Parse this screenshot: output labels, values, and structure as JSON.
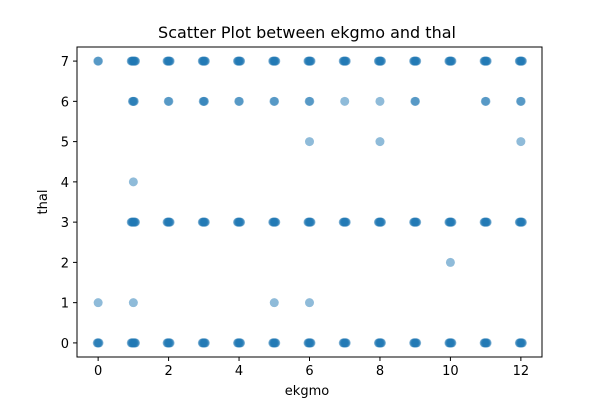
{
  "chart_data": {
    "type": "scatter",
    "title": "Scatter Plot between ekgmo and thal",
    "xlabel": "ekgmo",
    "ylabel": "thal",
    "xlim": [
      -0.6,
      12.6
    ],
    "ylim": [
      -0.35,
      7.35
    ],
    "xticks": [
      0,
      2,
      4,
      6,
      8,
      10,
      12
    ],
    "yticks": [
      0,
      1,
      2,
      3,
      4,
      5,
      6,
      7
    ],
    "grid": false,
    "legend": "none",
    "marker_color": "#1f77b4",
    "marker_alpha": 0.5,
    "series": [
      {
        "points": [
          {
            "x": 0,
            "y": 0,
            "n": 4
          },
          {
            "x": 0,
            "y": 1,
            "n": 1
          },
          {
            "x": 0,
            "y": 7,
            "n": 2
          },
          {
            "x": 1,
            "y": 0,
            "n": 8
          },
          {
            "x": 1,
            "y": 1,
            "n": 1
          },
          {
            "x": 1,
            "y": 3,
            "n": 8
          },
          {
            "x": 1,
            "y": 4,
            "n": 1
          },
          {
            "x": 1,
            "y": 6,
            "n": 4
          },
          {
            "x": 1,
            "y": 7,
            "n": 8
          },
          {
            "x": 2,
            "y": 0,
            "n": 6
          },
          {
            "x": 2,
            "y": 3,
            "n": 6
          },
          {
            "x": 2,
            "y": 6,
            "n": 2
          },
          {
            "x": 2,
            "y": 7,
            "n": 6
          },
          {
            "x": 3,
            "y": 0,
            "n": 6
          },
          {
            "x": 3,
            "y": 3,
            "n": 6
          },
          {
            "x": 3,
            "y": 6,
            "n": 3
          },
          {
            "x": 3,
            "y": 7,
            "n": 6
          },
          {
            "x": 4,
            "y": 0,
            "n": 6
          },
          {
            "x": 4,
            "y": 3,
            "n": 6
          },
          {
            "x": 4,
            "y": 6,
            "n": 2
          },
          {
            "x": 4,
            "y": 7,
            "n": 6
          },
          {
            "x": 5,
            "y": 0,
            "n": 6
          },
          {
            "x": 5,
            "y": 1,
            "n": 1
          },
          {
            "x": 5,
            "y": 3,
            "n": 6
          },
          {
            "x": 5,
            "y": 6,
            "n": 2
          },
          {
            "x": 5,
            "y": 7,
            "n": 6
          },
          {
            "x": 6,
            "y": 0,
            "n": 6
          },
          {
            "x": 6,
            "y": 1,
            "n": 1
          },
          {
            "x": 6,
            "y": 3,
            "n": 6
          },
          {
            "x": 6,
            "y": 5,
            "n": 1
          },
          {
            "x": 6,
            "y": 6,
            "n": 2
          },
          {
            "x": 6,
            "y": 7,
            "n": 6
          },
          {
            "x": 7,
            "y": 0,
            "n": 6
          },
          {
            "x": 7,
            "y": 3,
            "n": 6
          },
          {
            "x": 7,
            "y": 6,
            "n": 1
          },
          {
            "x": 7,
            "y": 7,
            "n": 6
          },
          {
            "x": 8,
            "y": 0,
            "n": 6
          },
          {
            "x": 8,
            "y": 3,
            "n": 6
          },
          {
            "x": 8,
            "y": 5,
            "n": 1
          },
          {
            "x": 8,
            "y": 6,
            "n": 1
          },
          {
            "x": 8,
            "y": 7,
            "n": 6
          },
          {
            "x": 9,
            "y": 0,
            "n": 6
          },
          {
            "x": 9,
            "y": 3,
            "n": 6
          },
          {
            "x": 9,
            "y": 6,
            "n": 2
          },
          {
            "x": 9,
            "y": 7,
            "n": 6
          },
          {
            "x": 10,
            "y": 0,
            "n": 6
          },
          {
            "x": 10,
            "y": 2,
            "n": 1
          },
          {
            "x": 10,
            "y": 3,
            "n": 6
          },
          {
            "x": 10,
            "y": 7,
            "n": 6
          },
          {
            "x": 11,
            "y": 0,
            "n": 6
          },
          {
            "x": 11,
            "y": 3,
            "n": 6
          },
          {
            "x": 11,
            "y": 6,
            "n": 2
          },
          {
            "x": 11,
            "y": 7,
            "n": 6
          },
          {
            "x": 12,
            "y": 0,
            "n": 6
          },
          {
            "x": 12,
            "y": 3,
            "n": 6
          },
          {
            "x": 12,
            "y": 5,
            "n": 1
          },
          {
            "x": 12,
            "y": 6,
            "n": 2
          },
          {
            "x": 12,
            "y": 7,
            "n": 6
          }
        ]
      }
    ]
  }
}
